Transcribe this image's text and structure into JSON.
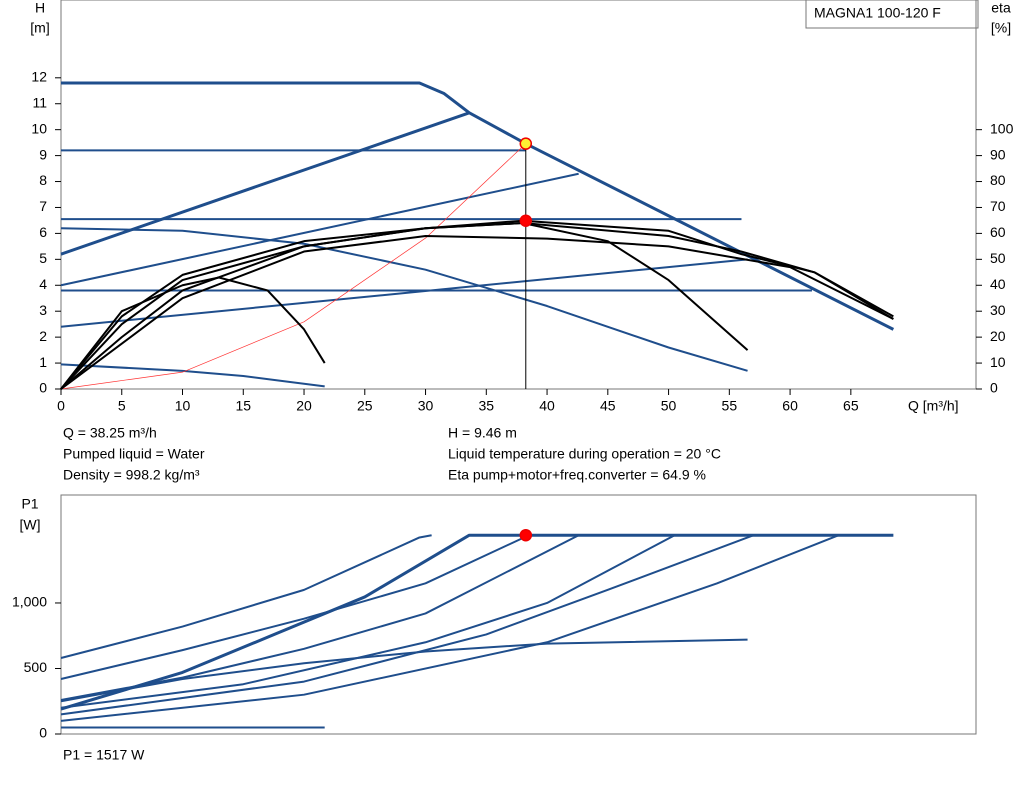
{
  "chart_data": [
    {
      "type": "line",
      "title": "MAGNA1 100-120 F",
      "ylabel": "H",
      "yunit": "[m]",
      "y2label": "eta",
      "y2unit": "[%]",
      "xlabel": "Q [m³/h]",
      "xlim": [
        0,
        75.3
      ],
      "xticks": [
        0,
        5,
        10,
        15,
        20,
        25,
        30,
        35,
        40,
        45,
        50,
        55,
        60,
        65
      ],
      "ylim": [
        0,
        15
      ],
      "yticks": [
        0,
        1,
        2,
        3,
        4,
        5,
        6,
        7,
        8,
        9,
        10,
        11,
        12
      ],
      "y2lim": [
        0,
        150
      ],
      "y2ticks": [
        0,
        10,
        20,
        30,
        40,
        50,
        60,
        70,
        80,
        90,
        100
      ],
      "series": [
        {
          "color": "#1f4e8c",
          "line_width": 3,
          "x": [
            0,
            29.5,
            31.5,
            33.6,
            38.25,
            68.5
          ],
          "values": [
            11.8,
            11.8,
            11.4,
            10.65,
            9.46,
            2.3
          ]
        },
        {
          "color": "#1f4e8c",
          "line_width": 3,
          "x": [
            0,
            33.6
          ],
          "values": [
            5.2,
            10.65
          ]
        },
        {
          "color": "#1f4e8c",
          "line_width": 2,
          "x": [
            0,
            42.6
          ],
          "values": [
            4.0,
            8.3
          ]
        },
        {
          "color": "#1f4e8c",
          "line_width": 2,
          "x": [
            0,
            56.5
          ],
          "values": [
            2.4,
            5.0
          ]
        },
        {
          "color": "#1f4e8c",
          "line_width": 2,
          "x": [
            0,
            38.25
          ],
          "values": [
            9.2,
            9.2
          ]
        },
        {
          "color": "#1f4e8c",
          "line_width": 2,
          "x": [
            0,
            56
          ],
          "values": [
            6.55,
            6.55
          ]
        },
        {
          "color": "#1f4e8c",
          "line_width": 2,
          "x": [
            0,
            61.8
          ],
          "values": [
            3.8,
            3.8
          ]
        },
        {
          "color": "#1f4e8c",
          "line_width": 2,
          "x": [
            0,
            10,
            20,
            30,
            40,
            50,
            56.5
          ],
          "values": [
            6.2,
            6.1,
            5.6,
            4.6,
            3.2,
            1.6,
            0.7
          ]
        },
        {
          "color": "#1f4e8c",
          "line_width": 2,
          "x": [
            0,
            10,
            15,
            21.7
          ],
          "values": [
            0.95,
            0.7,
            0.5,
            0.1
          ]
        },
        {
          "color": "#ff3333",
          "line_width": 0.7,
          "x": [
            0,
            10,
            20,
            30,
            38.25
          ],
          "values": [
            0,
            0.65,
            2.59,
            5.82,
            9.46
          ]
        },
        {
          "color": "#000000",
          "line_width": 2,
          "axis": "y2",
          "x": [
            0,
            5,
            10,
            13,
            17,
            20,
            21.7
          ],
          "values": [
            0,
            30,
            40,
            43,
            38,
            23,
            10
          ]
        },
        {
          "color": "#000000",
          "line_width": 2,
          "axis": "y2",
          "x": [
            0,
            5,
            10,
            20,
            30,
            38,
            45,
            50,
            56.5
          ],
          "values": [
            0,
            25,
            42,
            55,
            62,
            64,
            57,
            42,
            15
          ]
        },
        {
          "color": "#000000",
          "line_width": 2,
          "axis": "y2",
          "x": [
            0,
            5,
            10,
            20,
            30,
            38,
            50,
            56,
            62,
            68.5
          ],
          "values": [
            0,
            28,
            44,
            57,
            62,
            64,
            59,
            53,
            45,
            28
          ]
        },
        {
          "color": "#000000",
          "line_width": 2,
          "axis": "y2",
          "x": [
            0,
            5,
            10,
            20,
            30,
            38,
            50,
            56,
            62,
            68.5
          ],
          "values": [
            0,
            20,
            38,
            55,
            62,
            64.9,
            61,
            52,
            45,
            27
          ]
        },
        {
          "color": "#000000",
          "line_width": 2,
          "axis": "y2",
          "x": [
            0,
            10,
            20,
            30,
            40,
            50,
            60,
            68.5
          ],
          "values": [
            0,
            35,
            53,
            59,
            58,
            55,
            47,
            27
          ]
        }
      ],
      "points": [
        {
          "x": 38.25,
          "y": 9.46,
          "color": "#ffee33"
        },
        {
          "x": 38.25,
          "y": 64.9,
          "axis": "y2",
          "color": "#ff0000"
        }
      ],
      "annotations": [
        "Q = 38.25 m³/h",
        "Pumped liquid = Water",
        "Density = 998.2 kg/m³",
        "H = 9.46 m",
        "Liquid temperature during operation = 20 °C",
        "Eta pump+motor+freq.converter = 64.9 %"
      ]
    },
    {
      "type": "line",
      "ylabel": "P1",
      "yunit": "[W]",
      "xlim": [
        0,
        75.3
      ],
      "ylim": [
        0,
        1824
      ],
      "yticks": [
        0,
        500,
        {
          "value": 1000,
          "label": "1,000"
        }
      ],
      "series": [
        {
          "color": "#1f4e8c",
          "line_width": 3,
          "x": [
            0,
            10,
            25,
            33.6,
            68.5
          ],
          "values": [
            190,
            470,
            1046,
            1517,
            1517
          ]
        },
        {
          "color": "#1f4e8c",
          "line_width": 2,
          "x": [
            0,
            10,
            20,
            29.5,
            30.5
          ],
          "values": [
            580,
            820,
            1100,
            1500,
            1517
          ]
        },
        {
          "color": "#1f4e8c",
          "line_width": 2,
          "x": [
            0,
            10,
            20,
            30,
            38.5
          ],
          "values": [
            420,
            640,
            880,
            1150,
            1517
          ]
        },
        {
          "color": "#1f4e8c",
          "line_width": 2,
          "x": [
            0,
            10,
            20,
            30,
            42.6
          ],
          "values": [
            260,
            430,
            650,
            920,
            1517
          ]
        },
        {
          "color": "#1f4e8c",
          "line_width": 2,
          "x": [
            0,
            15,
            30,
            40,
            50.5
          ],
          "values": [
            200,
            380,
            700,
            1000,
            1517
          ]
        },
        {
          "color": "#1f4e8c",
          "line_width": 2,
          "x": [
            0,
            20,
            35,
            45,
            57
          ],
          "values": [
            150,
            400,
            760,
            1100,
            1517
          ]
        },
        {
          "color": "#1f4e8c",
          "line_width": 2,
          "x": [
            0,
            20,
            40,
            54,
            64
          ],
          "values": [
            100,
            300,
            700,
            1150,
            1517
          ]
        },
        {
          "color": "#1f4e8c",
          "line_width": 2,
          "x": [
            0,
            10,
            20,
            30,
            40,
            56.5
          ],
          "values": [
            250,
            420,
            540,
            630,
            690,
            720
          ]
        },
        {
          "color": "#1f4e8c",
          "line_width": 2,
          "x": [
            0,
            21.7
          ],
          "values": [
            50,
            50
          ]
        }
      ],
      "points": [
        {
          "x": 38.25,
          "y": 1517,
          "color": "#ff0000"
        }
      ],
      "annotations": [
        "P1 = 1517 W"
      ]
    }
  ]
}
